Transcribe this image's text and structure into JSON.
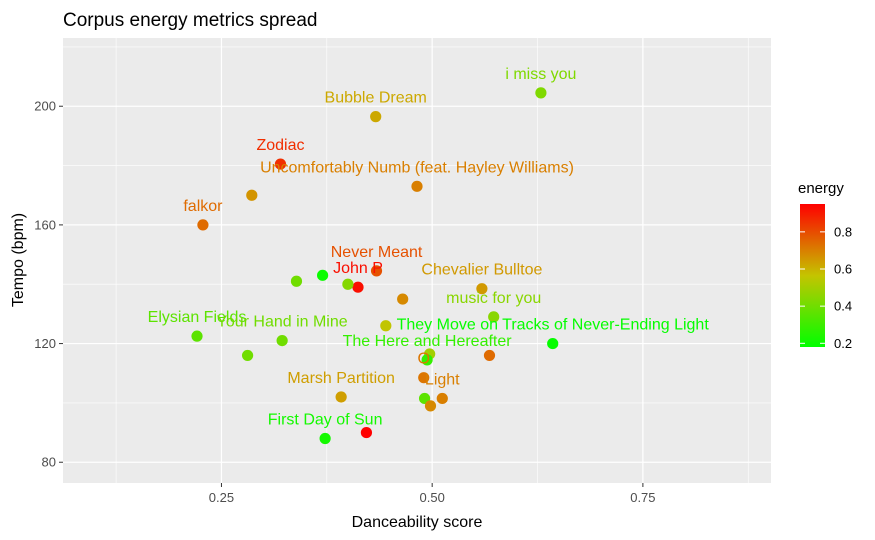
{
  "chart_data": {
    "type": "scatter",
    "title": "Corpus energy metrics spread",
    "xlabel": "Danceability score",
    "ylabel": "Tempo (bpm)",
    "xlim": [
      0.062,
      0.902
    ],
    "ylim": [
      73,
      223
    ],
    "x_ticks": [
      0.25,
      0.5,
      0.75
    ],
    "x_tick_labels": [
      "0.25",
      "0.50",
      "0.75"
    ],
    "y_ticks": [
      80,
      120,
      160,
      200
    ],
    "y_tick_labels": [
      "80",
      "120",
      "160",
      "200"
    ],
    "grid": true,
    "legend": {
      "title": "energy",
      "placement": "right",
      "range": [
        0.18,
        0.95
      ],
      "ticks": [
        0.2,
        0.4,
        0.6,
        0.8
      ],
      "tick_labels": [
        "0.2",
        "0.4",
        "0.6",
        "0.8"
      ],
      "colors": [
        "#00ff00",
        "#c4c400",
        "#ff0000"
      ]
    },
    "points": [
      {
        "x": 0.629,
        "y": 204.5,
        "energy": 0.43,
        "label": "i miss you"
      },
      {
        "x": 0.433,
        "y": 196.5,
        "energy": 0.62,
        "label": "Bubble Dream"
      },
      {
        "x": 0.32,
        "y": 180.5,
        "energy": 0.86,
        "label": "Zodiac"
      },
      {
        "x": 0.482,
        "y": 173.0,
        "energy": 0.7,
        "label": "Uncomfortably Numb (feat. Hayley Williams)"
      },
      {
        "x": 0.286,
        "y": 170.0,
        "energy": 0.66,
        "label": ""
      },
      {
        "x": 0.228,
        "y": 160.0,
        "energy": 0.74,
        "label": "falkor"
      },
      {
        "x": 0.434,
        "y": 144.5,
        "energy": 0.79,
        "label": "Never Meant"
      },
      {
        "x": 0.37,
        "y": 143.0,
        "energy": 0.2,
        "label": ""
      },
      {
        "x": 0.412,
        "y": 139.0,
        "energy": 0.92,
        "label": "John P"
      },
      {
        "x": 0.339,
        "y": 141.0,
        "energy": 0.4,
        "label": ""
      },
      {
        "x": 0.4,
        "y": 140.0,
        "energy": 0.44,
        "label": ""
      },
      {
        "x": 0.559,
        "y": 138.5,
        "energy": 0.65,
        "label": "Chevalier Bulltoe"
      },
      {
        "x": 0.465,
        "y": 135.0,
        "energy": 0.68,
        "label": ""
      },
      {
        "x": 0.573,
        "y": 129.0,
        "energy": 0.45,
        "label": "music for you"
      },
      {
        "x": 0.445,
        "y": 126.0,
        "energy": 0.56,
        "label": ""
      },
      {
        "x": 0.643,
        "y": 120.0,
        "energy": 0.19,
        "label": "They Move on Tracks of Never-Ending Light"
      },
      {
        "x": 0.221,
        "y": 122.5,
        "energy": 0.36,
        "label": "Elysian Fields"
      },
      {
        "x": 0.322,
        "y": 121.0,
        "energy": 0.4,
        "label": "Your Hand in Mine"
      },
      {
        "x": 0.281,
        "y": 116.0,
        "energy": 0.4,
        "label": ""
      },
      {
        "x": 0.497,
        "y": 116.5,
        "energy": 0.5,
        "label": ""
      },
      {
        "x": 0.568,
        "y": 116.0,
        "energy": 0.74,
        "label": ""
      },
      {
        "x": 0.494,
        "y": 114.5,
        "energy": 0.28,
        "label": "The Here and Hereafter"
      },
      {
        "x": 0.49,
        "y": 108.5,
        "energy": 0.72,
        "label": "O"
      },
      {
        "x": 0.392,
        "y": 102.0,
        "energy": 0.64,
        "label": "Marsh Partition"
      },
      {
        "x": 0.491,
        "y": 101.5,
        "energy": 0.36,
        "label": ""
      },
      {
        "x": 0.512,
        "y": 101.5,
        "energy": 0.7,
        "label": "Light"
      },
      {
        "x": 0.498,
        "y": 99.0,
        "energy": 0.68,
        "label": ""
      },
      {
        "x": 0.373,
        "y": 88.0,
        "energy": 0.22,
        "label": "First Day of Sun"
      },
      {
        "x": 0.422,
        "y": 90.0,
        "energy": 0.95,
        "label": ""
      }
    ]
  }
}
